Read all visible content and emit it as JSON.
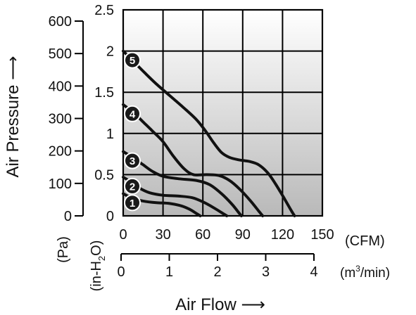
{
  "chart_data": {
    "type": "line",
    "title": "",
    "xlabel": "Air Flow ⟶",
    "ylabel": "Air Pressure ⟶",
    "x_axis": {
      "unit": "(CFM)",
      "ticks": [
        0,
        30,
        60,
        90,
        120,
        150
      ],
      "xlim": [
        0,
        150
      ],
      "secondary": {
        "unit": "(m³/min)",
        "unit_base": "(m",
        "unit_sup": "3",
        "unit_tail": "/min)",
        "ticks": [
          0,
          1,
          2,
          3,
          4
        ]
      }
    },
    "y_axis": {
      "unit_main": "(in-H",
      "unit_sub": "2",
      "unit_tail": "O)",
      "ticks": [
        0,
        0.5,
        1,
        1.5,
        2,
        2.5
      ],
      "ylim": [
        0,
        2.5
      ],
      "secondary": {
        "unit": "(Pa)",
        "ticks": [
          0,
          100,
          200,
          300,
          400,
          500,
          600
        ]
      }
    },
    "grid": true,
    "series": [
      {
        "name": "1",
        "points": [
          [
            0,
            0.27
          ],
          [
            6,
            0.22
          ],
          [
            15,
            0.18
          ],
          [
            25,
            0.16
          ],
          [
            35,
            0.15
          ],
          [
            44,
            0.12
          ],
          [
            50,
            0.08
          ],
          [
            55,
            0.03
          ],
          [
            58,
            0
          ]
        ]
      },
      {
        "name": "2",
        "points": [
          [
            0,
            0.47
          ],
          [
            5,
            0.42
          ],
          [
            12,
            0.34
          ],
          [
            20,
            0.28
          ],
          [
            30,
            0.25
          ],
          [
            42,
            0.24
          ],
          [
            52,
            0.22
          ],
          [
            60,
            0.17
          ],
          [
            68,
            0.1
          ],
          [
            75,
            0.03
          ],
          [
            78,
            0
          ]
        ]
      },
      {
        "name": "3",
        "points": [
          [
            0,
            0.78
          ],
          [
            8,
            0.7
          ],
          [
            15,
            0.62
          ],
          [
            22,
            0.54
          ],
          [
            30,
            0.48
          ],
          [
            42,
            0.45
          ],
          [
            55,
            0.43
          ],
          [
            65,
            0.38
          ],
          [
            74,
            0.27
          ],
          [
            82,
            0.14
          ],
          [
            87,
            0.04
          ],
          [
            89,
            0
          ]
        ]
      },
      {
        "name": "4",
        "points": [
          [
            0,
            1.35
          ],
          [
            8,
            1.25
          ],
          [
            15,
            1.14
          ],
          [
            22,
            1.03
          ],
          [
            30,
            0.9
          ],
          [
            38,
            0.72
          ],
          [
            46,
            0.57
          ],
          [
            53,
            0.5
          ],
          [
            63,
            0.5
          ],
          [
            72,
            0.49
          ],
          [
            80,
            0.43
          ],
          [
            88,
            0.32
          ],
          [
            96,
            0.18
          ],
          [
            102,
            0.06
          ],
          [
            105,
            0
          ]
        ]
      },
      {
        "name": "5",
        "points": [
          [
            0,
            2.0
          ],
          [
            8,
            1.87
          ],
          [
            16,
            1.74
          ],
          [
            25,
            1.6
          ],
          [
            35,
            1.46
          ],
          [
            45,
            1.32
          ],
          [
            55,
            1.17
          ],
          [
            62,
            1.03
          ],
          [
            68,
            0.89
          ],
          [
            74,
            0.77
          ],
          [
            80,
            0.71
          ],
          [
            87,
            0.68
          ],
          [
            95,
            0.66
          ],
          [
            102,
            0.62
          ],
          [
            109,
            0.52
          ],
          [
            115,
            0.38
          ],
          [
            121,
            0.22
          ],
          [
            126,
            0.08
          ],
          [
            129,
            0
          ]
        ]
      }
    ]
  }
}
